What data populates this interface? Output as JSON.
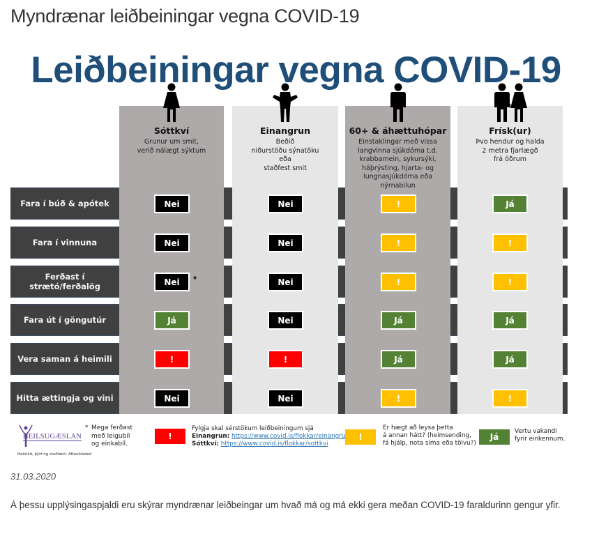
{
  "page": {
    "title": "Myndrænar leiðbeiningar vegna COVID-19",
    "date": "31.03.2020",
    "description": "Á þessu upplýsingaspjaldi eru skýrar myndrænar leiðbeingar um hvað má og má ekki gera meðan COVID-19 faraldurinn gengur yfir."
  },
  "infographic": {
    "title": "Leiðbeiningar vegna COVID-19",
    "colors": {
      "title": "#1f4e79",
      "row_band": "#404040",
      "col_dark": "#aeaaaa",
      "col_light": "#e7e6e6",
      "nei": "#000000",
      "ja": "#548235",
      "warn_red": "#ff0000",
      "warn_yellow": "#ffc000"
    },
    "columns": [
      {
        "name": "Sóttkví",
        "icon": "woman-figure-icon",
        "desc": [
          "Grunur um smit,",
          "verið nálægt sýktum"
        ]
      },
      {
        "name": "Einangrun",
        "icon": "man-shrugging-figure-icon",
        "desc": [
          "Beðið",
          "niðurstöðu sýnatöku",
          "eða",
          "staðfest smit"
        ]
      },
      {
        "name": "60+ & áhættuhópar",
        "icon": "man-figure-icon",
        "desc": [
          "Einstaklingar með vissa",
          "langvinna sjúkdóma t.d.",
          "krabbamein, sykursýki,",
          "háþrýsting, hjarta- og",
          "lungnasjúkdóma eða nýrnabilun"
        ]
      },
      {
        "name": "Frísk(ur)",
        "icon": "couple-figure-icon",
        "desc": [
          "Þvo hendur og halda",
          "2 metra fjarlægð",
          "frá öðrum"
        ]
      }
    ],
    "rows": [
      {
        "label": "Fara í búð & apótek",
        "values": [
          "Nei",
          "Nei",
          "!",
          "Já"
        ],
        "types": [
          "nei",
          "nei",
          "yellow",
          "ja"
        ]
      },
      {
        "label": "Fara í vinnuna",
        "values": [
          "Nei",
          "Nei",
          "!",
          "!"
        ],
        "types": [
          "nei",
          "nei",
          "yellow",
          "yellow"
        ]
      },
      {
        "label": "Ferðast í strætó/ferðalög",
        "values": [
          "Nei",
          "Nei",
          "!",
          "!"
        ],
        "types": [
          "nei",
          "nei",
          "yellow",
          "yellow"
        ],
        "asterisk": "*"
      },
      {
        "label": "Fara út í göngutúr",
        "values": [
          "Já",
          "Nei",
          "Já",
          "Já"
        ],
        "types": [
          "ja",
          "nei",
          "ja",
          "ja"
        ]
      },
      {
        "label": "Vera saman á heimili",
        "values": [
          "!",
          "!",
          "Já",
          "Já"
        ],
        "types": [
          "red",
          "red",
          "ja",
          "ja"
        ]
      },
      {
        "label": "Hitta ættingja og vini",
        "values": [
          "Nei",
          "Nei",
          "!",
          "!"
        ],
        "types": [
          "nei",
          "nei",
          "yellow",
          "yellow"
        ]
      }
    ],
    "legend": {
      "logo_text": "HEILSUGÆSLAN",
      "source": "Heimild, þýtt og staðfært: Aftonbladed",
      "asterisk_note": {
        "star": "*",
        "lines": [
          "Mega ferðast",
          "með leigubíl",
          "og einkabíl."
        ]
      },
      "red": {
        "badge": "!",
        "line1": "Fylgja skal sérstökum leiðbeiningum sjá",
        "einangrun_label": "Einangrun:",
        "einangrun_link": "https://www.covid.is/flokkar/einangrun",
        "sottkvi_label": "Sóttkví:",
        "sottkvi_link": "https://www.covid.is/flokkar/sottkvi"
      },
      "yellow": {
        "badge": "!",
        "lines": [
          "Er hægt að leysa þetta",
          "á annan hátt? (heimsending,",
          "fá hjálp, nota síma eða tölvu?)"
        ]
      },
      "green": {
        "badge": "Já",
        "lines": [
          "Vertu vakandi",
          "fyrir einkennum."
        ]
      }
    }
  }
}
